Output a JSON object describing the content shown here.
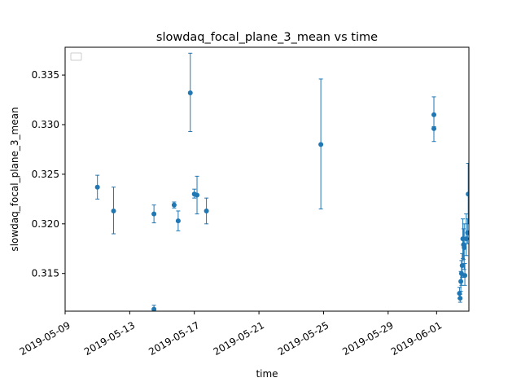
{
  "chart_data": {
    "type": "scatter",
    "title": "slowdaq_focal_plane_3_mean vs time",
    "xlabel": "time",
    "ylabel": "slowdaq_focal_plane_3_mean",
    "x_type": "date",
    "xlim": [
      "2019-05-09T00:00",
      "2019-06-03T00:00"
    ],
    "ylim": [
      0.3112,
      0.3378
    ],
    "x_ticks": [
      "2019-05-09",
      "2019-05-13",
      "2019-05-17",
      "2019-05-21",
      "2019-05-25",
      "2019-05-29",
      "2019-06-01"
    ],
    "y_ticks": [
      0.315,
      0.32,
      0.325,
      0.33,
      0.335
    ],
    "legend": "top-left",
    "grid": false,
    "color": "#1f77b4",
    "series": [
      {
        "points": [
          {
            "x": "2019-05-11T00:00",
            "y": 0.3237,
            "lo": 0.3225,
            "hi": 0.3249
          },
          {
            "x": "2019-05-12T00:00",
            "y": 0.3213,
            "lo": 0.319,
            "hi": 0.3237
          },
          {
            "x": "2019-05-14T12:00",
            "y": 0.321,
            "lo": 0.3201,
            "hi": 0.3219
          },
          {
            "x": "2019-05-14T12:00",
            "y": 0.3114,
            "lo": 0.3112,
            "hi": 0.3118
          },
          {
            "x": "2019-05-15T18:00",
            "y": 0.3219,
            "lo": 0.3216,
            "hi": 0.3222
          },
          {
            "x": "2019-05-16T00:00",
            "y": 0.3203,
            "lo": 0.3193,
            "hi": 0.3213
          },
          {
            "x": "2019-05-16T18:00",
            "y": 0.3332,
            "lo": 0.3293,
            "hi": 0.3372
          },
          {
            "x": "2019-05-17T00:00",
            "y": 0.323,
            "lo": 0.3226,
            "hi": 0.3235
          },
          {
            "x": "2019-05-17T04:00",
            "y": 0.3229,
            "lo": 0.321,
            "hi": 0.3248
          },
          {
            "x": "2019-05-17T18:00",
            "y": 0.3213,
            "lo": 0.32,
            "hi": 0.3226
          },
          {
            "x": "2019-05-24T20:00",
            "y": 0.328,
            "lo": 0.3215,
            "hi": 0.3346
          },
          {
            "x": "2019-05-31T20:00",
            "y": 0.331,
            "lo": 0.3298,
            "hi": 0.3328
          },
          {
            "x": "2019-05-31T20:00",
            "y": 0.3296,
            "lo": 0.3283,
            "hi": 0.331
          },
          {
            "x": "2019-06-02T10:00",
            "y": 0.313,
            "lo": 0.3125,
            "hi": 0.3136
          },
          {
            "x": "2019-06-02T11:00",
            "y": 0.3125,
            "lo": 0.3121,
            "hi": 0.3129
          },
          {
            "x": "2019-06-02T12:00",
            "y": 0.3142,
            "lo": 0.3132,
            "hi": 0.3152
          },
          {
            "x": "2019-06-02T13:00",
            "y": 0.315,
            "lo": 0.3138,
            "hi": 0.3163
          },
          {
            "x": "2019-06-02T14:00",
            "y": 0.3158,
            "lo": 0.3146,
            "hi": 0.317
          },
          {
            "x": "2019-06-02T15:00",
            "y": 0.3185,
            "lo": 0.3165,
            "hi": 0.3205
          },
          {
            "x": "2019-06-02T16:00",
            "y": 0.3179,
            "lo": 0.3164,
            "hi": 0.3195
          },
          {
            "x": "2019-06-02T17:00",
            "y": 0.3176,
            "lo": 0.3154,
            "hi": 0.32
          },
          {
            "x": "2019-06-02T18:00",
            "y": 0.3148,
            "lo": 0.3138,
            "hi": 0.316
          },
          {
            "x": "2019-06-02T20:00",
            "y": 0.3185,
            "lo": 0.3168,
            "hi": 0.321
          },
          {
            "x": "2019-06-02T22:00",
            "y": 0.3191,
            "lo": 0.318,
            "hi": 0.3205
          },
          {
            "x": "2019-06-02T23:00",
            "y": 0.323,
            "lo": 0.32,
            "hi": 0.3261
          }
        ]
      }
    ]
  }
}
